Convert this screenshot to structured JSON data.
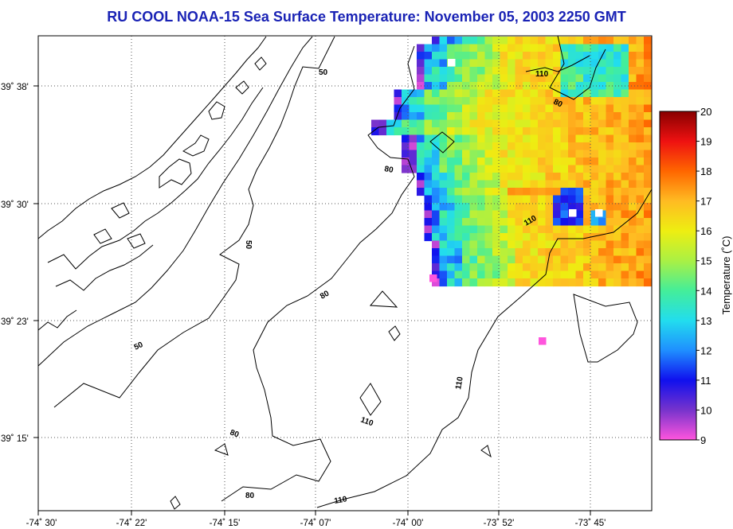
{
  "title": "RU COOL  NOAA-15  Sea Surface Temperature:  November 05, 2003 2250 GMT",
  "map": {
    "lon_ticks": [
      "-74˚ 30'",
      "-74˚ 22'",
      "-74˚ 15'",
      "-74˚ 07'",
      "-74˚ 00'",
      "-73˚ 52'",
      "-73˚ 45'"
    ],
    "lat_ticks": [
      "39˚ 38'",
      "39˚ 30'",
      "39˚ 23'",
      "39˚ 15'"
    ],
    "contour_labels": [
      "50",
      "50",
      "50",
      "80",
      "80",
      "80",
      "80",
      "80",
      "110",
      "110",
      "110",
      "110",
      "110"
    ]
  },
  "colorbar": {
    "label": "Temperature (˚C)",
    "min": 9,
    "max": 20,
    "ticks": [
      "20",
      "19",
      "18",
      "17",
      "16",
      "15",
      "14",
      "13",
      "12",
      "11",
      "10",
      "9"
    ],
    "colors": [
      "#ff55dd",
      "#7733cc",
      "#1010ee",
      "#1f8fff",
      "#22ddee",
      "#44ee99",
      "#aaf044",
      "#eeee11",
      "#ffbb22",
      "#ff6600",
      "#ee1111",
      "#880000"
    ]
  }
}
